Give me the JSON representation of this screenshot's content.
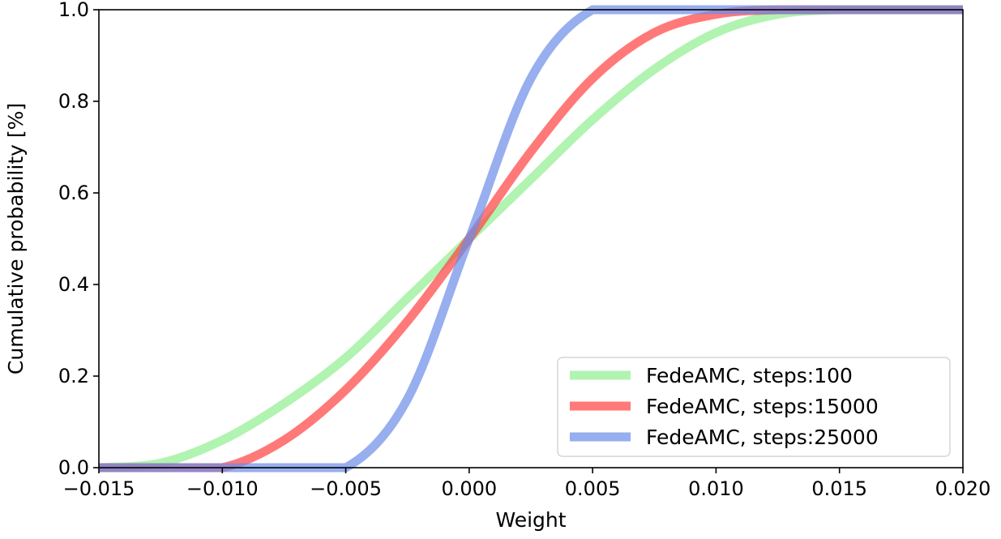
{
  "chart_data": {
    "type": "line",
    "xlabel": "Weight",
    "ylabel": "Cumulative probability [%]",
    "xlim": [
      -0.015,
      0.02
    ],
    "ylim": [
      0.0,
      1.0
    ],
    "xticks": [
      -0.015,
      -0.01,
      -0.005,
      0.0,
      0.005,
      0.01,
      0.015,
      0.02
    ],
    "xtick_labels": [
      "−0.015",
      "−0.010",
      "−0.005",
      "0.000",
      "0.005",
      "0.010",
      "0.015",
      "0.020"
    ],
    "yticks": [
      0.0,
      0.2,
      0.4,
      0.6,
      0.8,
      1.0
    ],
    "ytick_labels": [
      "0.0",
      "0.2",
      "0.4",
      "0.6",
      "0.8",
      "1.0"
    ],
    "grid": false,
    "legend_position": "bottom-right",
    "x": [
      -0.015,
      -0.0125,
      -0.01,
      -0.0075,
      -0.005,
      -0.0025,
      0.0,
      0.0025,
      0.005,
      0.0075,
      0.01,
      0.0125,
      0.015,
      0.0175,
      0.02
    ],
    "series": [
      {
        "name": "FedeAMC, steps:100",
        "color": "#90ee90",
        "values": [
          0.0,
          0.01,
          0.06,
          0.14,
          0.24,
          0.37,
          0.5,
          0.63,
          0.76,
          0.87,
          0.95,
          0.99,
          1.0,
          1.0,
          1.0
        ]
      },
      {
        "name": "FedeAMC, steps:15000",
        "color": "#ff4040",
        "values": [
          0.0,
          0.0,
          0.0,
          0.06,
          0.17,
          0.32,
          0.5,
          0.69,
          0.85,
          0.95,
          0.99,
          1.0,
          1.0,
          1.0,
          1.0
        ]
      },
      {
        "name": "FedeAMC, steps:25000",
        "color": "#6b8ce8",
        "values": [
          0.0,
          0.0,
          0.0,
          0.0,
          0.0,
          0.15,
          0.5,
          0.85,
          1.0,
          1.0,
          1.0,
          1.0,
          1.0,
          1.0,
          1.0
        ]
      }
    ]
  }
}
